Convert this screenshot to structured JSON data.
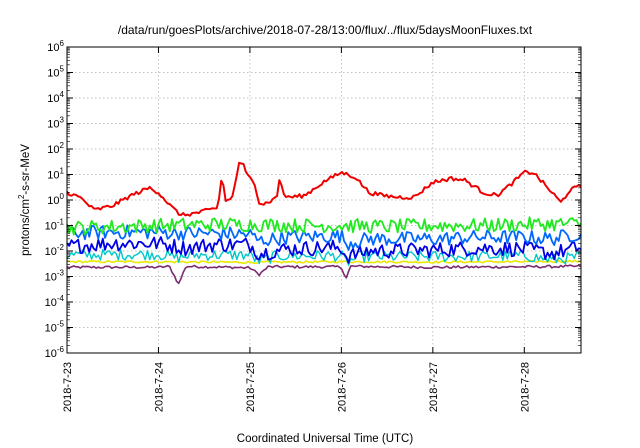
{
  "chart_data": {
    "type": "line",
    "title": "/data/run/goesPlots/archive/2018-07-28/13:00/flux/../flux/5daysMoonFluxes.txt",
    "xlabel": "Coordinated Universal Time (UTC)",
    "ylabel": "protons/cm²-s-sr-MeV",
    "ylabel_parts": {
      "pre": "protons/cm",
      "sup": "2",
      "post": "-s-sr-MeV"
    },
    "yscale": "log",
    "ylim": [
      1e-06,
      1000000.0
    ],
    "xlim": [
      0,
      5.62
    ],
    "y_ticks": [
      {
        "base": "10",
        "exp": "6",
        "value": 6
      },
      {
        "base": "10",
        "exp": "5",
        "value": 5
      },
      {
        "base": "10",
        "exp": "4",
        "value": 4
      },
      {
        "base": "10",
        "exp": "3",
        "value": 3
      },
      {
        "base": "10",
        "exp": "2",
        "value": 2
      },
      {
        "base": "10",
        "exp": "1",
        "value": 1
      },
      {
        "base": "10",
        "exp": "0",
        "value": 0
      },
      {
        "base": "10",
        "exp": "-1",
        "value": -1
      },
      {
        "base": "10",
        "exp": "-2",
        "value": -2
      },
      {
        "base": "10",
        "exp": "-3",
        "value": -3
      },
      {
        "base": "10",
        "exp": "-4",
        "value": -4
      },
      {
        "base": "10",
        "exp": "-5",
        "value": -5
      },
      {
        "base": "10",
        "exp": "-6",
        "value": -6
      }
    ],
    "x_ticks": [
      {
        "label": "2018-7-23",
        "value": 0
      },
      {
        "label": "2018-7-24",
        "value": 1
      },
      {
        "label": "2018-7-25",
        "value": 2
      },
      {
        "label": "2018-7-26",
        "value": 3
      },
      {
        "label": "2018-7-27",
        "value": 4
      },
      {
        "label": "2018-7-28",
        "value": 5
      }
    ],
    "grid": true,
    "legend": "none",
    "series": [
      {
        "color": "#7b2a72",
        "base": [
          [
            0,
            0.0023
          ],
          [
            1,
            0.0023
          ],
          [
            1.12,
            0.0025
          ],
          [
            1.22,
            0.0005
          ],
          [
            1.3,
            0.0025
          ],
          [
            2,
            0.0022
          ],
          [
            2.1,
            0.0012
          ],
          [
            2.2,
            0.0024
          ],
          [
            3,
            0.0024
          ],
          [
            3.05,
            0.0008
          ],
          [
            3.1,
            0.0025
          ],
          [
            4,
            0.0023
          ],
          [
            5,
            0.0024
          ],
          [
            5.62,
            0.0025
          ]
        ],
        "noise": 0.05,
        "width": 1.6
      },
      {
        "color": "#e8e800",
        "base": [
          [
            0,
            0.0038
          ],
          [
            1,
            0.0038
          ],
          [
            2,
            0.0036
          ],
          [
            3,
            0.0038
          ],
          [
            4,
            0.0037
          ],
          [
            5,
            0.0038
          ],
          [
            5.62,
            0.004
          ]
        ],
        "noise": 0.04,
        "width": 1.6
      },
      {
        "color": "#00c8c8",
        "base": [
          [
            0,
            0.007
          ],
          [
            1,
            0.0075
          ],
          [
            1.2,
            0.0055
          ],
          [
            1.4,
            0.007
          ],
          [
            2,
            0.007
          ],
          [
            2.1,
            0.004
          ],
          [
            2.3,
            0.0065
          ],
          [
            3,
            0.0065
          ],
          [
            3.05,
            0.0035
          ],
          [
            3.2,
            0.006
          ],
          [
            4,
            0.006
          ],
          [
            5,
            0.0065
          ],
          [
            5.3,
            0.0045
          ],
          [
            5.62,
            0.006
          ]
        ],
        "noise": 0.22,
        "width": 1.4
      },
      {
        "color": "#0000e6",
        "base": [
          [
            0,
            0.015
          ],
          [
            0.5,
            0.02
          ],
          [
            1,
            0.02
          ],
          [
            1.3,
            0.013
          ],
          [
            1.6,
            0.018
          ],
          [
            2,
            0.018
          ],
          [
            2.1,
            0.008
          ],
          [
            2.4,
            0.012
          ],
          [
            3,
            0.014
          ],
          [
            3.05,
            0.006
          ],
          [
            3.3,
            0.01
          ],
          [
            4,
            0.011
          ],
          [
            4.5,
            0.013
          ],
          [
            5,
            0.012
          ],
          [
            5.3,
            0.008
          ],
          [
            5.62,
            0.014
          ]
        ],
        "noise": 0.3,
        "width": 1.8
      },
      {
        "color": "#0068ff",
        "base": [
          [
            0,
            0.05
          ],
          [
            0.5,
            0.055
          ],
          [
            1,
            0.055
          ],
          [
            1.3,
            0.05
          ],
          [
            1.6,
            0.05
          ],
          [
            2,
            0.045
          ],
          [
            2.1,
            0.025
          ],
          [
            2.4,
            0.035
          ],
          [
            3,
            0.04
          ],
          [
            3.05,
            0.02
          ],
          [
            3.3,
            0.03
          ],
          [
            4,
            0.03
          ],
          [
            4.5,
            0.035
          ],
          [
            5,
            0.035
          ],
          [
            5.3,
            0.03
          ],
          [
            5.62,
            0.05
          ]
        ],
        "noise": 0.28,
        "width": 1.8
      },
      {
        "color": "#22e822",
        "base": [
          [
            0,
            0.08
          ],
          [
            0.5,
            0.09
          ],
          [
            1,
            0.1
          ],
          [
            1.5,
            0.11
          ],
          [
            2,
            0.11
          ],
          [
            2.5,
            0.1
          ],
          [
            3,
            0.1
          ],
          [
            3.5,
            0.09
          ],
          [
            4,
            0.1
          ],
          [
            4.5,
            0.1
          ],
          [
            5,
            0.11
          ],
          [
            5.62,
            0.12
          ]
        ],
        "noise": 0.28,
        "width": 1.8
      },
      {
        "color": "#ee0000",
        "base": [
          [
            0,
            2.0
          ],
          [
            0.15,
            1.2
          ],
          [
            0.3,
            0.4
          ],
          [
            0.5,
            0.6
          ],
          [
            0.7,
            1.5
          ],
          [
            0.9,
            3.0
          ],
          [
            1.0,
            2.0
          ],
          [
            1.15,
            0.5
          ],
          [
            1.25,
            0.25
          ],
          [
            1.4,
            0.3
          ],
          [
            1.55,
            0.4
          ],
          [
            1.65,
            0.5
          ],
          [
            1.7,
            15
          ],
          [
            1.72,
            1.0
          ],
          [
            1.8,
            1.0
          ],
          [
            1.88,
            25
          ],
          [
            1.92,
            30
          ],
          [
            1.96,
            10
          ],
          [
            2.05,
            5
          ],
          [
            2.1,
            0.8
          ],
          [
            2.15,
            0.7
          ],
          [
            2.25,
            1.0
          ],
          [
            2.3,
            1.5
          ],
          [
            2.33,
            12
          ],
          [
            2.36,
            1.5
          ],
          [
            2.45,
            1.3
          ],
          [
            2.6,
            1.5
          ],
          [
            2.8,
            5
          ],
          [
            3.0,
            12
          ],
          [
            3.15,
            8
          ],
          [
            3.3,
            2.0
          ],
          [
            3.45,
            1.5
          ],
          [
            3.6,
            1.3
          ],
          [
            3.8,
            1.3
          ],
          [
            4.0,
            5
          ],
          [
            4.2,
            7
          ],
          [
            4.35,
            6
          ],
          [
            4.55,
            2.0
          ],
          [
            4.7,
            1.5
          ],
          [
            4.85,
            4
          ],
          [
            5.0,
            12
          ],
          [
            5.1,
            12
          ],
          [
            5.3,
            2.0
          ],
          [
            5.4,
            0.8
          ],
          [
            5.5,
            2.5
          ],
          [
            5.62,
            3.5
          ]
        ],
        "noise": 0.08,
        "width": 2.0
      }
    ]
  }
}
